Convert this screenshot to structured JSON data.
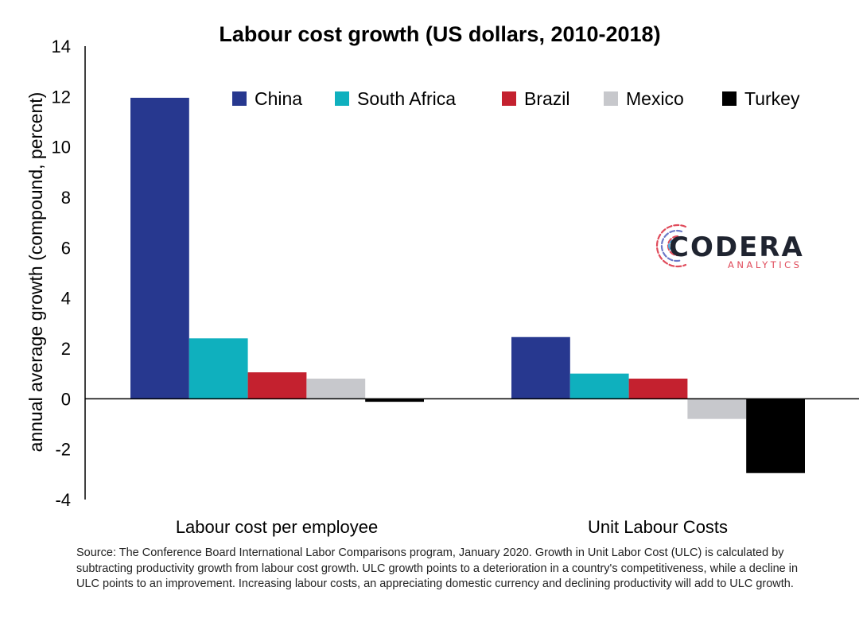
{
  "chart_data": {
    "type": "bar",
    "title": "Labour cost  growth (US dollars, 2010-2018)",
    "xlabel": "",
    "ylabel": "annual average growth (compound, percent)",
    "ylim": [
      -4,
      14
    ],
    "yticks": [
      -4,
      -2,
      0,
      2,
      4,
      6,
      8,
      10,
      12,
      14
    ],
    "grid": false,
    "legend_position": "top-right",
    "categories": [
      "Labour cost per employee",
      "Unit Labour Costs"
    ],
    "series": [
      {
        "name": "China",
        "color": "#27388f",
        "values": [
          11.95,
          2.45
        ]
      },
      {
        "name": "South Africa",
        "color": "#0fb0be",
        "values": [
          2.4,
          1.0
        ]
      },
      {
        "name": "Brazil",
        "color": "#c4212f",
        "values": [
          1.05,
          0.8
        ]
      },
      {
        "name": "Mexico",
        "color": "#c7c8cc",
        "values": [
          0.8,
          -0.8
        ]
      },
      {
        "name": "Turkey",
        "color": "#000000",
        "values": [
          -0.12,
          -2.95
        ]
      }
    ]
  },
  "logo": {
    "name": "CODERA",
    "tagline": "ANALYTICS"
  },
  "source_note": "Source: The Conference Board International Labor Comparisons program, January 2020. Growth in Unit Labor Cost (ULC) is calculated by subtracting productivity growth from labour cost growth. ULC growth points to a deterioration in a country's competitiveness, while a decline in ULC points to an improvement. Increasing labour costs, an appreciating domestic currency and declining productivity will add to ULC growth."
}
